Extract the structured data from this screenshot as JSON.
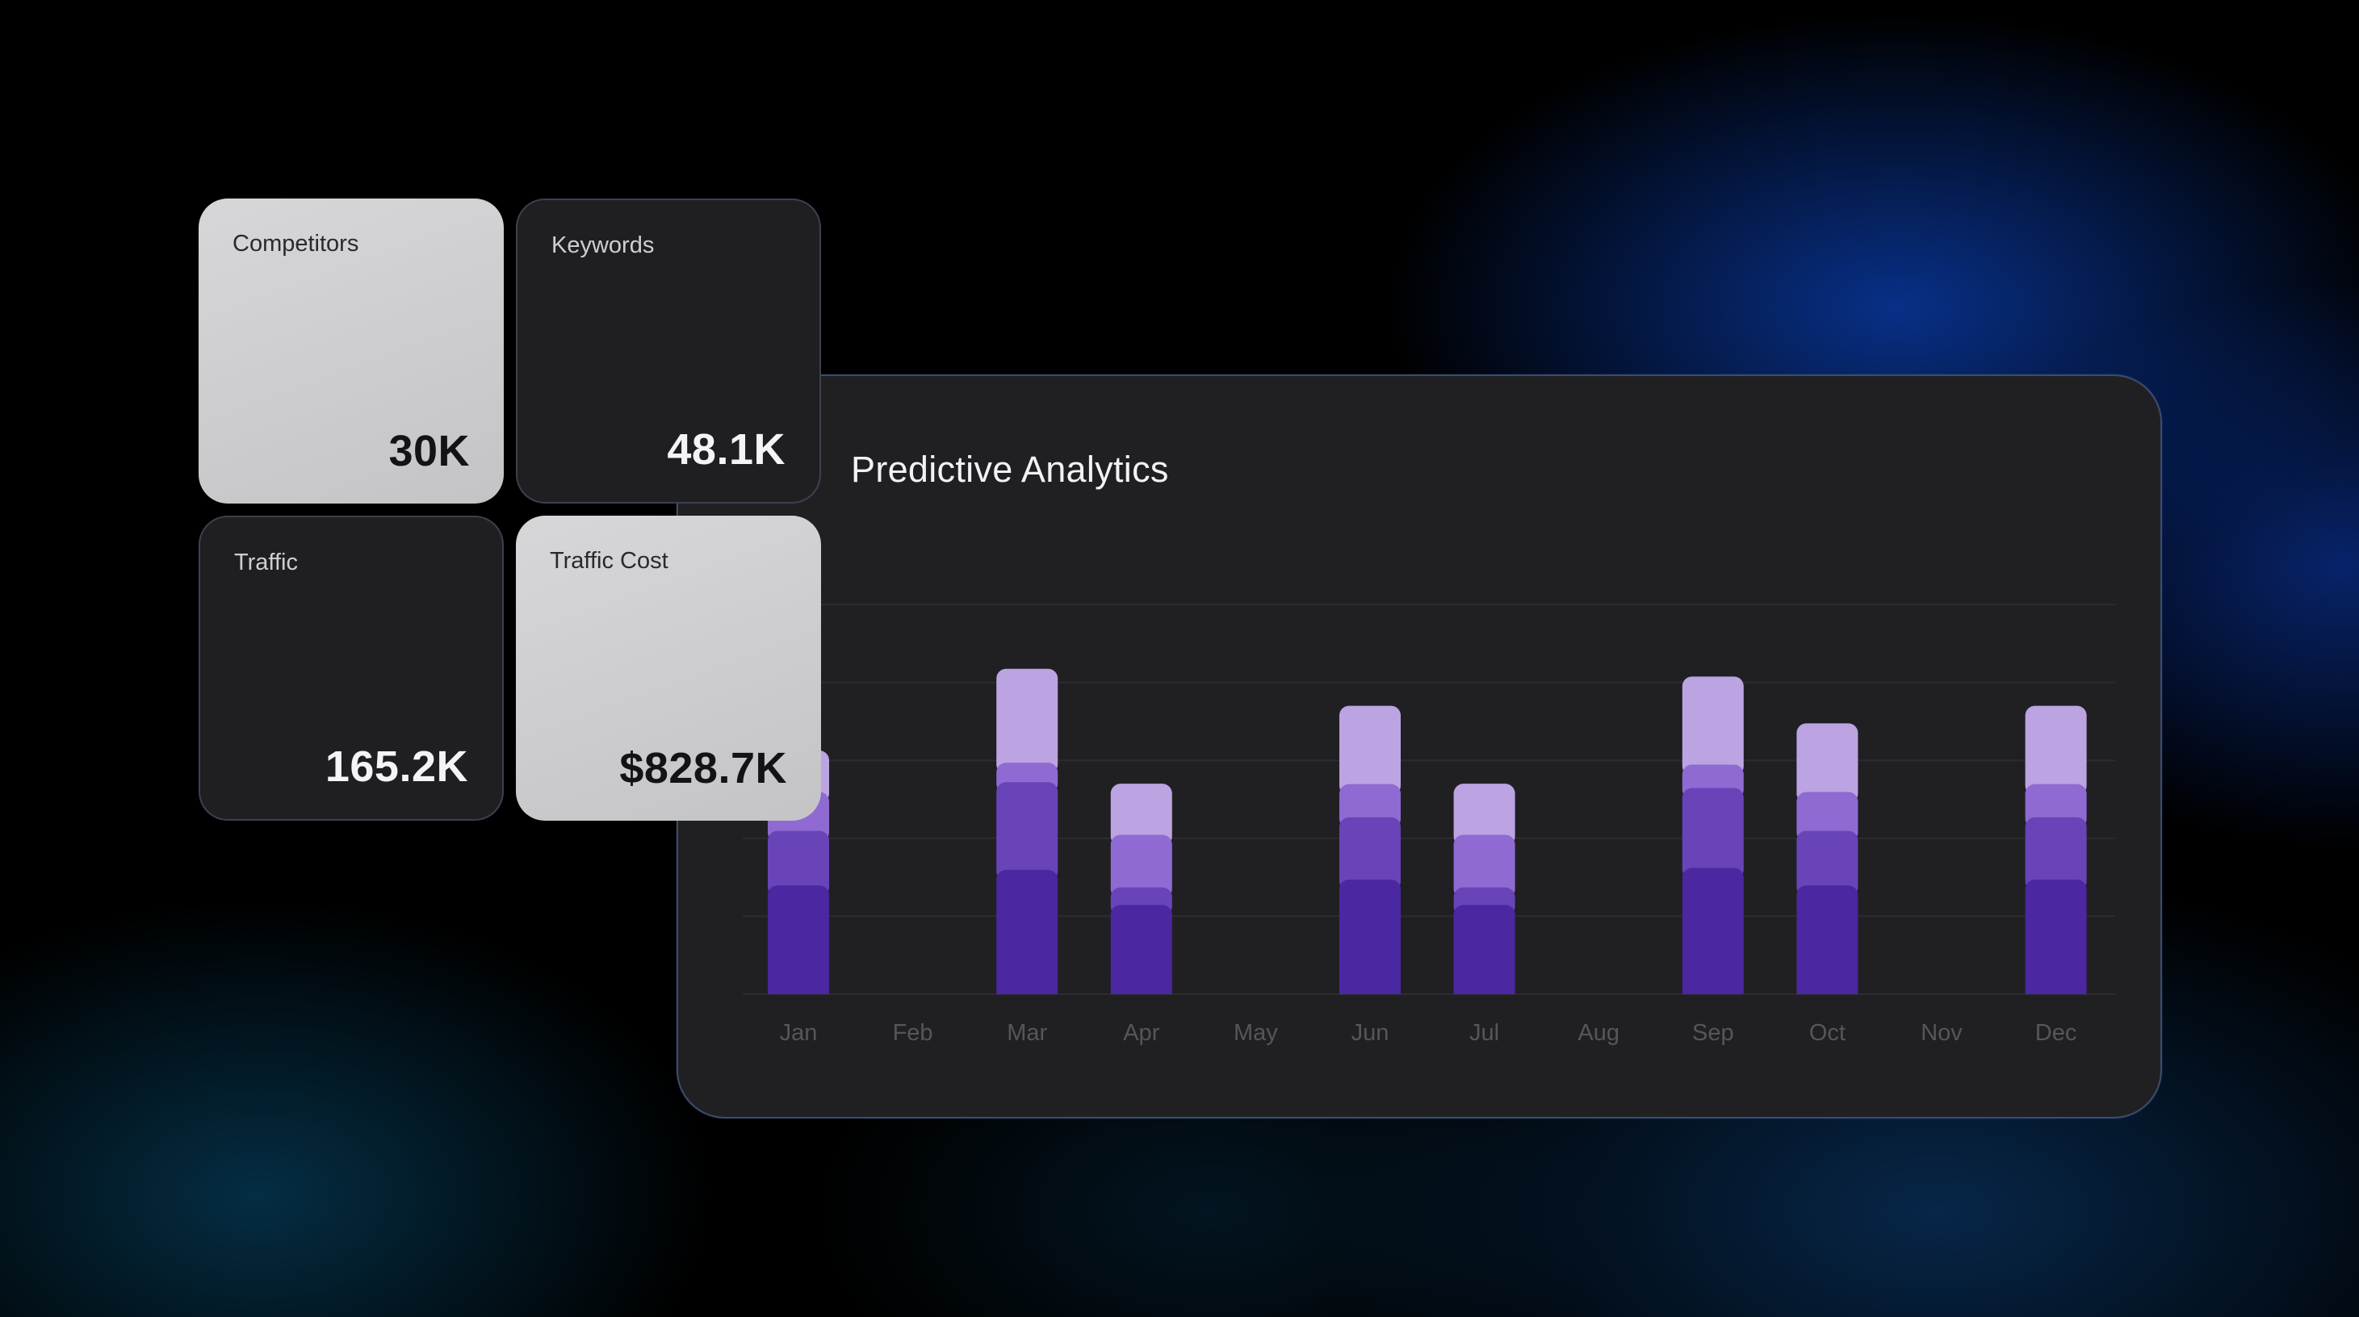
{
  "metrics": [
    {
      "label": "Competitors",
      "value": "30K"
    },
    {
      "label": "Keywords",
      "value": "48.1K"
    },
    {
      "label": "Traffic",
      "value": "165.2K"
    },
    {
      "label": "Traffic Cost",
      "value": "$828.7K"
    }
  ],
  "chart_data": {
    "type": "bar",
    "title": "Predictive Analytics",
    "categories": [
      "Jan",
      "Feb",
      "Mar",
      "Apr",
      "May",
      "Jun",
      "Jul",
      "Aug",
      "Sep",
      "Oct",
      "Nov",
      "Dec"
    ],
    "bars": [
      {
        "category": "Jan",
        "segments": [
          50,
          28,
          20,
          27
        ]
      },
      {
        "category": "Mar",
        "segments": [
          58,
          45,
          10,
          54
        ]
      },
      {
        "category": "Apr",
        "segments": [
          40,
          9,
          27,
          32
        ]
      },
      {
        "category": "Jun",
        "segments": [
          53,
          32,
          17,
          46
        ]
      },
      {
        "category": "Jul",
        "segments": [
          40,
          9,
          27,
          32
        ]
      },
      {
        "category": "Sep",
        "segments": [
          59,
          41,
          12,
          51
        ]
      },
      {
        "category": "Oct",
        "segments": [
          50,
          28,
          20,
          41
        ]
      },
      {
        "category": "Dec",
        "segments": [
          53,
          32,
          17,
          46
        ]
      }
    ],
    "ylim": [
      0,
      200
    ],
    "grid": true,
    "legend": "none",
    "colors": [
      "#4b27a1",
      "#6844b8",
      "#8f6ad3",
      "#bba4e1"
    ]
  }
}
